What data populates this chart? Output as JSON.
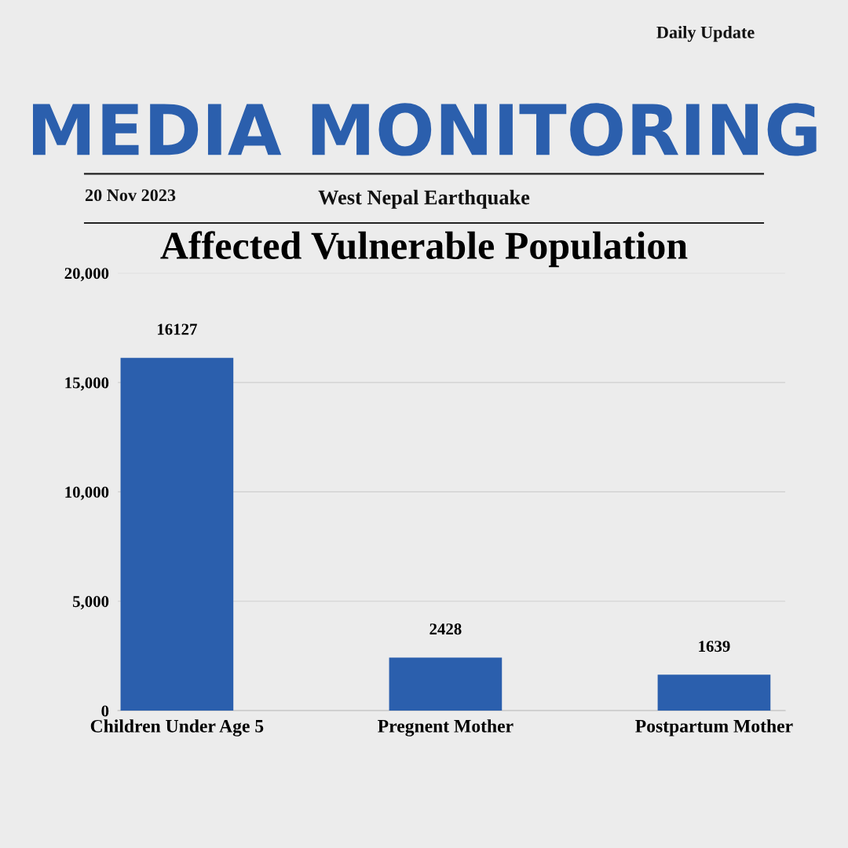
{
  "chart_data": {
    "type": "bar",
    "title": "Affected Vulnerable Population",
    "annotations": [
      "Daily Update",
      "MEDIA MONITORING",
      "20 Nov 2023",
      "West Nepal Earthquake"
    ],
    "categories": [
      "Children Under Age 5",
      "Pregnent Mother",
      "Postpartum Mother"
    ],
    "values": [
      16127,
      2428,
      1639
    ],
    "color": "#2b5fad",
    "ylim": [
      0,
      20000
    ],
    "yticks": [
      {
        "value": 0,
        "label": "0"
      },
      {
        "value": 5000,
        "label": "5,000"
      },
      {
        "value": 10000,
        "label": "10,000"
      },
      {
        "value": 15000,
        "label": "15,000"
      },
      {
        "value": 20000,
        "label": "20,000"
      }
    ],
    "grid": "y",
    "data_labels": true
  }
}
